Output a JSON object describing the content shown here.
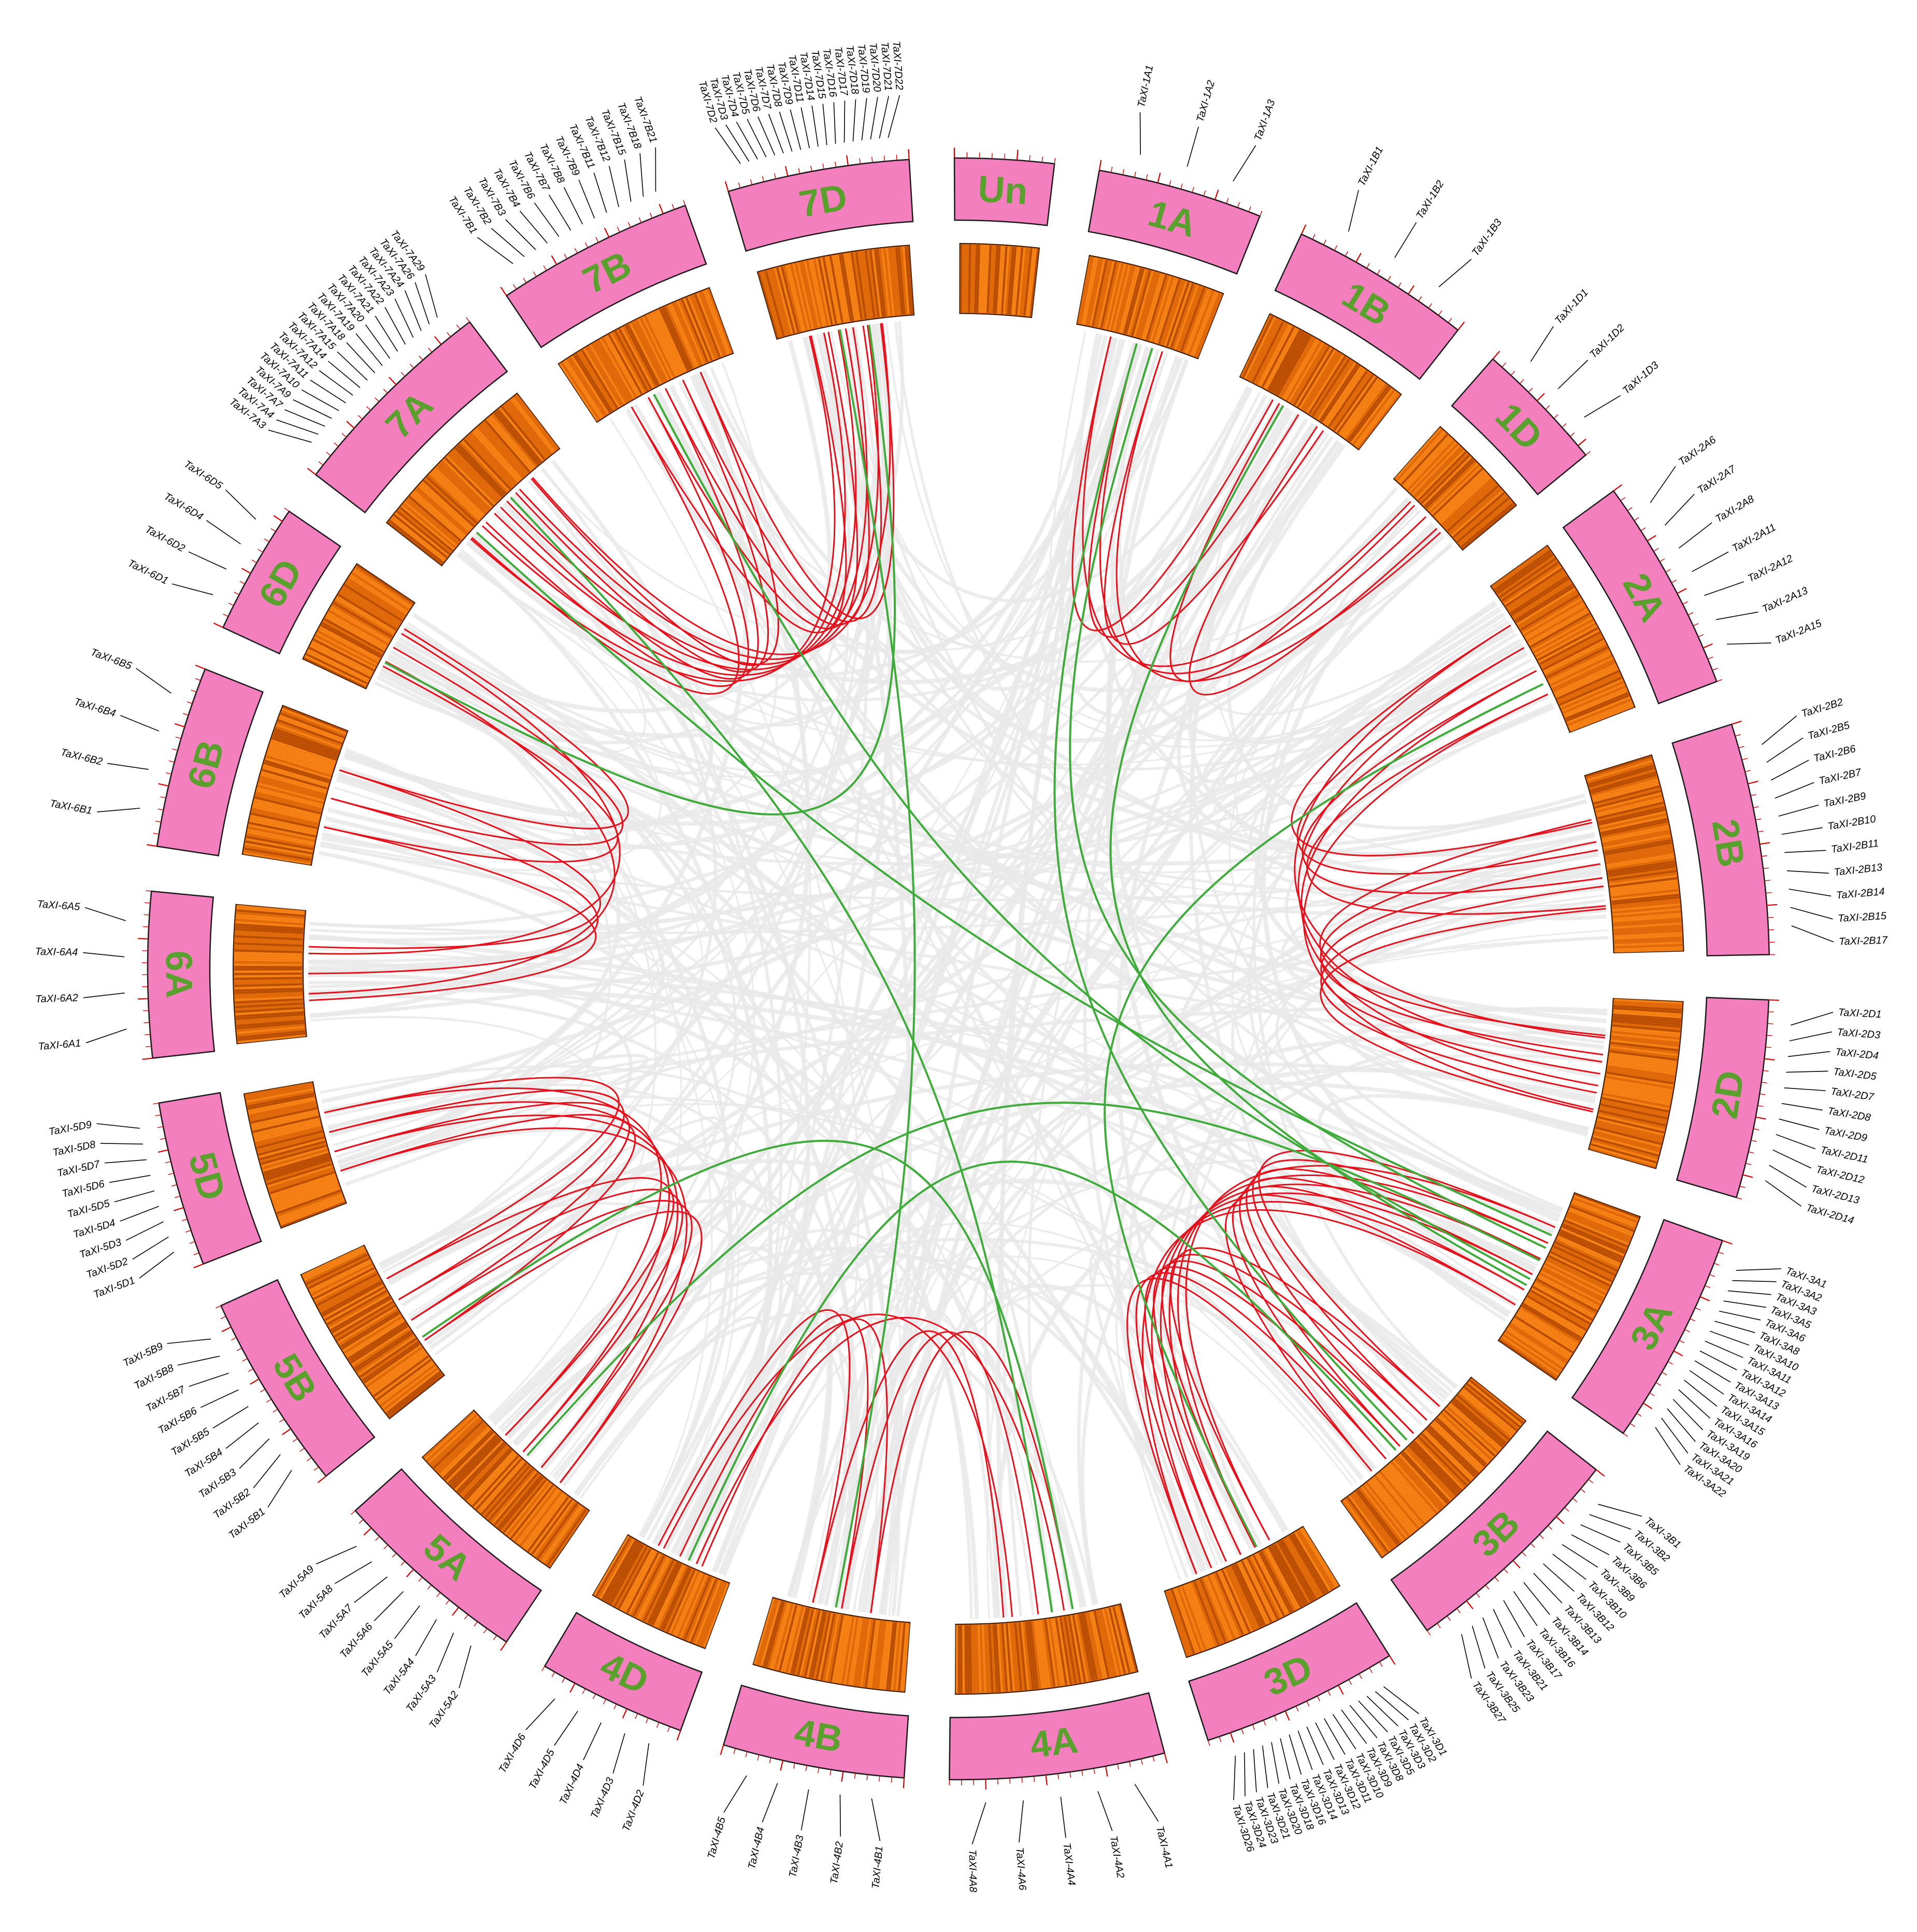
{
  "colors": {
    "chromosome_fill": "#f47fbf",
    "chromosome_stroke": "#1a1a1a",
    "tick": "#d40000",
    "density_light": "#ff8c1a",
    "density_dark": "#a84300",
    "density_mid": "#e06a0a",
    "synteny_background": "#e9e9e9",
    "segmental_link": "#e3121d",
    "inter_link": "#3fab3a",
    "chromosome_label": "#5aa02c",
    "leader": "#000000"
  },
  "chromosomes": [
    {
      "name": "1A",
      "size": 10,
      "genes": [
        "TaXI-1A1",
        "TaXI-1A2",
        "TaXI-1A3"
      ]
    },
    {
      "name": "1B",
      "size": 11,
      "genes": [
        "TaXI-1B1",
        "TaXI-1B2",
        "TaXI-1B3"
      ]
    },
    {
      "name": "1D",
      "size": 8,
      "genes": [
        "TaXI-1D1",
        "TaXI-1D2",
        "TaXI-1D3"
      ]
    },
    {
      "name": "2A",
      "size": 13,
      "genes": [
        "TaXI-2A6",
        "TaXI-2A7",
        "TaXI-2A8",
        "TaXI-2A11",
        "TaXI-2A12",
        "TaXI-2A13",
        "TaXI-2A15"
      ]
    },
    {
      "name": "2B",
      "size": 14,
      "genes": [
        "TaXI-2B2",
        "TaXI-2B5",
        "TaXI-2B6",
        "TaXI-2B7",
        "TaXI-2B9",
        "TaXI-2B10",
        "TaXI-2B11",
        "TaXI-2B13",
        "TaXI-2B14",
        "TaXI-2B15",
        "TaXI-2B17"
      ]
    },
    {
      "name": "2D",
      "size": 12,
      "genes": [
        "TaXI-2D1",
        "TaXI-2D3",
        "TaXI-2D4",
        "TaXI-2D5",
        "TaXI-2D7",
        "TaXI-2D8",
        "TaXI-2D9",
        "TaXI-2D11",
        "TaXI-2D12",
        "TaXI-2D13",
        "TaXI-2D14"
      ]
    },
    {
      "name": "3A",
      "size": 13,
      "genes": [
        "TaXI-3A1",
        "TaXI-3A2",
        "TaXI-3A3",
        "TaXI-3A5",
        "TaXI-3A6",
        "TaXI-3A8",
        "TaXI-3A10",
        "TaXI-3A11",
        "TaXI-3A12",
        "TaXI-3A13",
        "TaXI-3A14",
        "TaXI-3A15",
        "TaXI-3A16",
        "TaXI-3A19",
        "TaXI-3A20",
        "TaXI-3A21",
        "TaXI-3A22"
      ]
    },
    {
      "name": "3B",
      "size": 14,
      "genes": [
        "TaXI-3B1",
        "TaXI-3B2",
        "TaXI-3B5",
        "TaXI-3B6",
        "TaXI-3B9",
        "TaXI-3B10",
        "TaXI-3B12",
        "TaXI-3B13",
        "TaXI-3B14",
        "TaXI-3B16",
        "TaXI-3B17",
        "TaXI-3B21",
        "TaXI-3B23",
        "TaXI-3B25",
        "TaXI-3B27"
      ]
    },
    {
      "name": "3D",
      "size": 12,
      "genes": [
        "TaXI-3D1",
        "TaXI-3D2",
        "TaXI-3D3",
        "TaXI-3D5",
        "TaXI-3D8",
        "TaXI-3D9",
        "TaXI-3D10",
        "TaXI-3D11",
        "TaXI-3D12",
        "TaXI-3D13",
        "TaXI-3D14",
        "TaXI-3D16",
        "TaXI-3D18",
        "TaXI-3D20",
        "TaXI-3D21",
        "TaXI-3D23",
        "TaXI-3D24",
        "TaXI-3D26"
      ]
    },
    {
      "name": "4A",
      "size": 13,
      "genes": [
        "TaXI-4A1",
        "TaXI-4A2",
        "TaXI-4A4",
        "TaXI-4A6",
        "TaXI-4A8"
      ]
    },
    {
      "name": "4B",
      "size": 11,
      "genes": [
        "TaXI-4B1",
        "TaXI-4B2",
        "TaXI-4B3",
        "TaXI-4B4",
        "TaXI-4B5"
      ]
    },
    {
      "name": "4D",
      "size": 9,
      "genes": [
        "TaXI-4D2",
        "TaXI-4D3",
        "TaXI-4D4",
        "TaXI-4D5",
        "TaXI-4D6"
      ]
    },
    {
      "name": "5A",
      "size": 12,
      "genes": [
        "TaXI-5A2",
        "TaXI-5A3",
        "TaXI-5A4",
        "TaXI-5A5",
        "TaXI-5A6",
        "TaXI-5A7",
        "TaXI-5A8",
        "TaXI-5A9"
      ]
    },
    {
      "name": "5B",
      "size": 12,
      "genes": [
        "TaXI-5B1",
        "TaXI-5B2",
        "TaXI-5B3",
        "TaXI-5B4",
        "TaXI-5B5",
        "TaXI-5B6",
        "TaXI-5B7",
        "TaXI-5B8",
        "TaXI-5B9"
      ]
    },
    {
      "name": "5D",
      "size": 10,
      "genes": [
        "TaXI-5D1",
        "TaXI-5D2",
        "TaXI-5D3",
        "TaXI-5D4",
        "TaXI-5D5",
        "TaXI-5D6",
        "TaXI-5D7",
        "TaXI-5D8",
        "TaXI-5D9"
      ]
    },
    {
      "name": "6A",
      "size": 10,
      "genes": [
        "TaXI-6A1",
        "TaXI-6A2",
        "TaXI-6A4",
        "TaXI-6A5"
      ]
    },
    {
      "name": "6B",
      "size": 11,
      "genes": [
        "TaXI-6B1",
        "TaXI-6B2",
        "TaXI-6B4",
        "TaXI-6B5"
      ]
    },
    {
      "name": "6D",
      "size": 8,
      "genes": [
        "TaXI-6D1",
        "TaXI-6D2",
        "TaXI-6D4",
        "TaXI-6D5"
      ]
    },
    {
      "name": "7A",
      "size": 13,
      "genes": [
        "TaXI-7A3",
        "TaXI-7A4",
        "TaXI-7A7",
        "TaXI-7A9",
        "TaXI-7A10",
        "TaXI-7A11",
        "TaXI-7A12",
        "TaXI-7A14",
        "TaXI-7A15",
        "TaXI-7A18",
        "TaXI-7A19",
        "TaXI-7A20",
        "TaXI-7A21",
        "TaXI-7A22",
        "TaXI-7A23",
        "TaXI-7A24",
        "TaXI-7A26",
        "TaXI-7A29"
      ]
    },
    {
      "name": "7B",
      "size": 12,
      "genes": [
        "TaXI-7B1",
        "TaXI-7B2",
        "TaXI-7B3",
        "TaXI-7B4",
        "TaXI-7B6",
        "TaXI-7B7",
        "TaXI-7B8",
        "TaXI-7B9",
        "TaXI-7B11",
        "TaXI-7B12",
        "TaXI-7B15",
        "TaXI-7B18",
        "TaXI-7B21"
      ]
    },
    {
      "name": "7D",
      "size": 11,
      "genes": [
        "TaXI-7D2",
        "TaXI-7D3",
        "TaXI-7D4",
        "TaXI-7D5",
        "TaXI-7D6",
        "TaXI-7D7",
        "TaXI-7D8",
        "TaXI-7D9",
        "TaXI-7D11",
        "TaXI-7D14",
        "TaXI-7D15",
        "TaXI-7D16",
        "TaXI-7D17",
        "TaXI-7D18",
        "TaXI-7D19",
        "TaXI-7D20",
        "TaXI-7D21",
        "TaXI-7D22"
      ]
    },
    {
      "name": "Un",
      "size": 6,
      "genes": []
    }
  ],
  "links": {
    "segmental": [
      [
        "1A",
        "1B",
        3
      ],
      [
        "1A",
        "1D",
        3
      ],
      [
        "1B",
        "1D",
        2
      ],
      [
        "2A",
        "2B",
        4
      ],
      [
        "2A",
        "2D",
        4
      ],
      [
        "2B",
        "2D",
        5
      ],
      [
        "3A",
        "3B",
        6
      ],
      [
        "3A",
        "3D",
        6
      ],
      [
        "3B",
        "3D",
        6
      ],
      [
        "4A",
        "4B",
        3
      ],
      [
        "4A",
        "4D",
        2
      ],
      [
        "4B",
        "4D",
        3
      ],
      [
        "5A",
        "5B",
        4
      ],
      [
        "5A",
        "5D",
        4
      ],
      [
        "5B",
        "5D",
        4
      ],
      [
        "6A",
        "6B",
        3
      ],
      [
        "6A",
        "6D",
        2
      ],
      [
        "6B",
        "6D",
        3
      ],
      [
        "7A",
        "7B",
        5
      ],
      [
        "7A",
        "7D",
        6
      ],
      [
        "7B",
        "7D",
        5
      ]
    ],
    "inter": [
      [
        "7A",
        "3A"
      ],
      [
        "7A",
        "4A"
      ],
      [
        "7D",
        "4B"
      ],
      [
        "6D",
        "7D"
      ],
      [
        "1A",
        "3A"
      ],
      [
        "1A",
        "3B"
      ],
      [
        "1B",
        "3A"
      ],
      [
        "2A",
        "3D"
      ],
      [
        "5A",
        "3A"
      ],
      [
        "4D",
        "3B"
      ],
      [
        "5B",
        "4A"
      ],
      [
        "3A",
        "7B"
      ]
    ]
  }
}
